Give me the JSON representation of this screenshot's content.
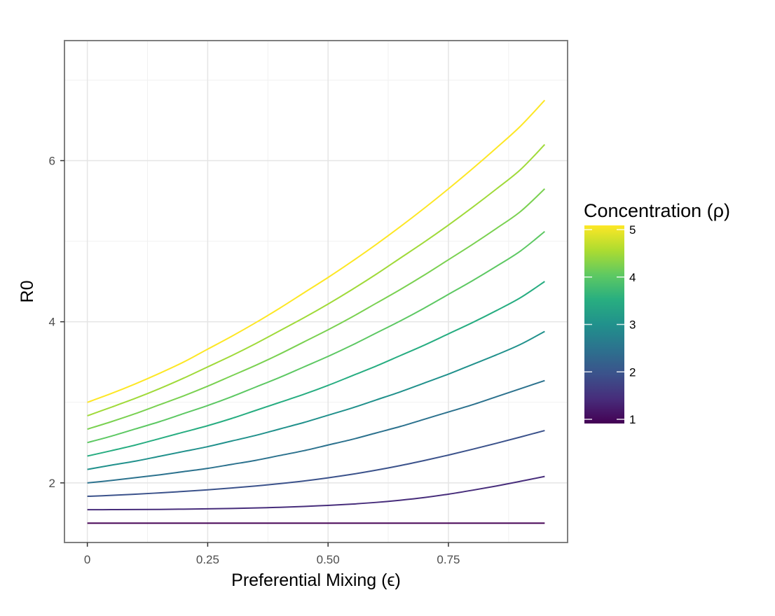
{
  "chart_data": {
    "type": "line",
    "title": "",
    "xlabel": "Preferential Mixing (ϵ)",
    "ylabel": "R0",
    "xlim": [
      -0.0475,
      0.9975
    ],
    "ylim": [
      1.26,
      7.49
    ],
    "x_ticks": [
      0,
      0.25,
      0.5,
      0.75
    ],
    "x_tick_labels": [
      "0",
      "0.25",
      "0.50",
      "0.75"
    ],
    "y_ticks": [
      2,
      4,
      6
    ],
    "y_tick_labels": [
      "2",
      "4",
      "6"
    ],
    "grid": true,
    "legend": {
      "title": "Concentration (ρ)",
      "type": "colorbar",
      "placement": "right",
      "range": [
        1,
        5
      ],
      "ticks": [
        1,
        2,
        3,
        4,
        5
      ],
      "tick_labels": [
        "1",
        "2",
        "3",
        "4",
        "5"
      ]
    },
    "x": [
      0,
      0.05,
      0.1,
      0.15,
      0.2,
      0.25,
      0.3,
      0.35,
      0.4,
      0.45,
      0.5,
      0.55,
      0.6,
      0.65,
      0.7,
      0.75,
      0.8,
      0.85,
      0.9,
      0.95
    ],
    "series": [
      {
        "name": "ρ = 1.0",
        "rho": 1.0,
        "color": "#440154",
        "values": [
          1.5,
          1.5,
          1.5,
          1.5,
          1.5,
          1.5,
          1.5,
          1.5,
          1.5,
          1.5,
          1.5,
          1.5,
          1.5,
          1.5,
          1.5,
          1.5,
          1.5,
          1.5,
          1.5,
          1.5
        ]
      },
      {
        "name": "ρ = 1.44",
        "rho": 1.44,
        "color": "#472d7b",
        "values": [
          1.667,
          1.668,
          1.669,
          1.671,
          1.674,
          1.678,
          1.683,
          1.689,
          1.697,
          1.708,
          1.721,
          1.737,
          1.758,
          1.785,
          1.818,
          1.86,
          1.909,
          1.962,
          2.02,
          2.08
        ]
      },
      {
        "name": "ρ = 1.89",
        "rho": 1.89,
        "color": "#3b528b",
        "values": [
          1.833,
          1.845,
          1.86,
          1.876,
          1.894,
          1.914,
          1.937,
          1.962,
          1.991,
          2.024,
          2.063,
          2.107,
          2.158,
          2.215,
          2.278,
          2.345,
          2.417,
          2.492,
          2.57,
          2.65
        ]
      },
      {
        "name": "ρ = 2.33",
        "rho": 2.33,
        "color": "#2c728e",
        "values": [
          2.0,
          2.03,
          2.065,
          2.1,
          2.14,
          2.18,
          2.23,
          2.28,
          2.34,
          2.4,
          2.47,
          2.54,
          2.62,
          2.7,
          2.79,
          2.88,
          2.97,
          3.07,
          3.17,
          3.27
        ]
      },
      {
        "name": "ρ = 2.78",
        "rho": 2.78,
        "color": "#21918c",
        "values": [
          2.167,
          2.22,
          2.27,
          2.33,
          2.39,
          2.45,
          2.52,
          2.59,
          2.67,
          2.75,
          2.84,
          2.93,
          3.03,
          3.13,
          3.24,
          3.35,
          3.47,
          3.59,
          3.72,
          3.88
        ]
      },
      {
        "name": "ρ = 3.22",
        "rho": 3.22,
        "color": "#27ad81",
        "values": [
          2.333,
          2.4,
          2.47,
          2.55,
          2.63,
          2.71,
          2.8,
          2.9,
          3.0,
          3.1,
          3.21,
          3.33,
          3.45,
          3.58,
          3.71,
          3.85,
          3.99,
          4.14,
          4.3,
          4.5
        ]
      },
      {
        "name": "ρ = 3.67",
        "rho": 3.67,
        "color": "#5dc863",
        "values": [
          2.5,
          2.58,
          2.67,
          2.76,
          2.86,
          2.96,
          3.07,
          3.19,
          3.31,
          3.44,
          3.57,
          3.71,
          3.86,
          4.01,
          4.17,
          4.34,
          4.51,
          4.69,
          4.88,
          5.12
        ]
      },
      {
        "name": "ρ = 4.11",
        "rho": 4.11,
        "color": "#7ad151",
        "values": [
          2.667,
          2.76,
          2.86,
          2.97,
          3.08,
          3.2,
          3.33,
          3.46,
          3.6,
          3.75,
          3.9,
          4.06,
          4.23,
          4.4,
          4.58,
          4.77,
          4.96,
          5.16,
          5.37,
          5.65
        ]
      },
      {
        "name": "ρ = 4.56",
        "rho": 4.56,
        "color": "#a0da39",
        "values": [
          2.833,
          2.94,
          3.05,
          3.17,
          3.3,
          3.44,
          3.58,
          3.73,
          3.89,
          4.05,
          4.22,
          4.4,
          4.59,
          4.79,
          4.99,
          5.2,
          5.42,
          5.65,
          5.89,
          6.2
        ]
      },
      {
        "name": "ρ = 5.0",
        "rho": 5.0,
        "color": "#fde725",
        "values": [
          3.0,
          3.11,
          3.23,
          3.36,
          3.5,
          3.66,
          3.82,
          3.99,
          4.17,
          4.36,
          4.55,
          4.75,
          4.96,
          5.18,
          5.41,
          5.65,
          5.9,
          6.16,
          6.43,
          6.75
        ]
      }
    ]
  }
}
